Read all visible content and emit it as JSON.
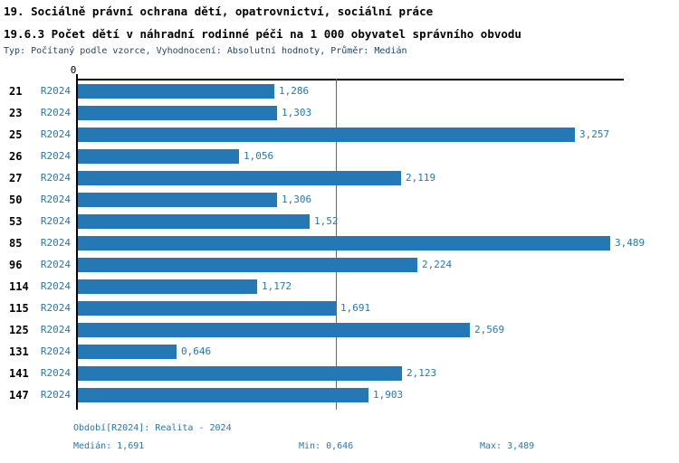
{
  "header": {
    "title_line1": "19. Sociálně právní ochrana dětí, opatrovnictví, sociální práce",
    "title_line2": "19.6.3 Počet dětí v náhradní rodinné péči na 1 000 obyvatel správního obvodu",
    "subtitle": "Typ: Počítaný podle vzorce, Vyhodnocení: Absolutní hodnoty, Průměr: Medián"
  },
  "chart_data": {
    "type": "bar",
    "orientation": "horizontal",
    "title": "19.6.3 Počet dětí v náhradní rodinné péči na 1 000 obyvatel správního obvodu",
    "categories": [
      "21",
      "23",
      "25",
      "26",
      "27",
      "50",
      "53",
      "85",
      "96",
      "114",
      "115",
      "125",
      "131",
      "141",
      "147"
    ],
    "series": [
      {
        "name": "R2024",
        "values": [
          1.286,
          1.303,
          3.257,
          1.056,
          2.119,
          1.306,
          1.52,
          3.489,
          2.224,
          1.172,
          1.691,
          2.569,
          0.646,
          2.123,
          1.903
        ]
      }
    ],
    "value_labels": [
      "1,286",
      "1,303",
      "3,257",
      "1,056",
      "2,119",
      "1,306",
      "1,52",
      "3,489",
      "2,224",
      "1,172",
      "1,691",
      "2,569",
      "0,646",
      "2,123",
      "1,903"
    ],
    "xlabel": "",
    "ylabel": "",
    "x_axis": {
      "zero_label": "0",
      "xlim": [
        0,
        3.58
      ],
      "ticks_shown": [
        "0"
      ]
    },
    "grid": false,
    "legend_position": "none",
    "median_line_value": 1.691,
    "stats": {
      "median": 1.691,
      "min": 0.646,
      "max": 3.489
    }
  },
  "footer": {
    "period_label": "Období[R2024]: Realita - 2024",
    "median_label": "Medián: 1,691",
    "min_label": "Min: 0,646",
    "max_label": "Max: 3,489"
  },
  "colors": {
    "bar": "#2478b4",
    "accent_text": "#2478b4",
    "axis": "#000000",
    "title_text": "#000000",
    "subtitle_text": "#1f4663",
    "background": "#ffffff"
  }
}
